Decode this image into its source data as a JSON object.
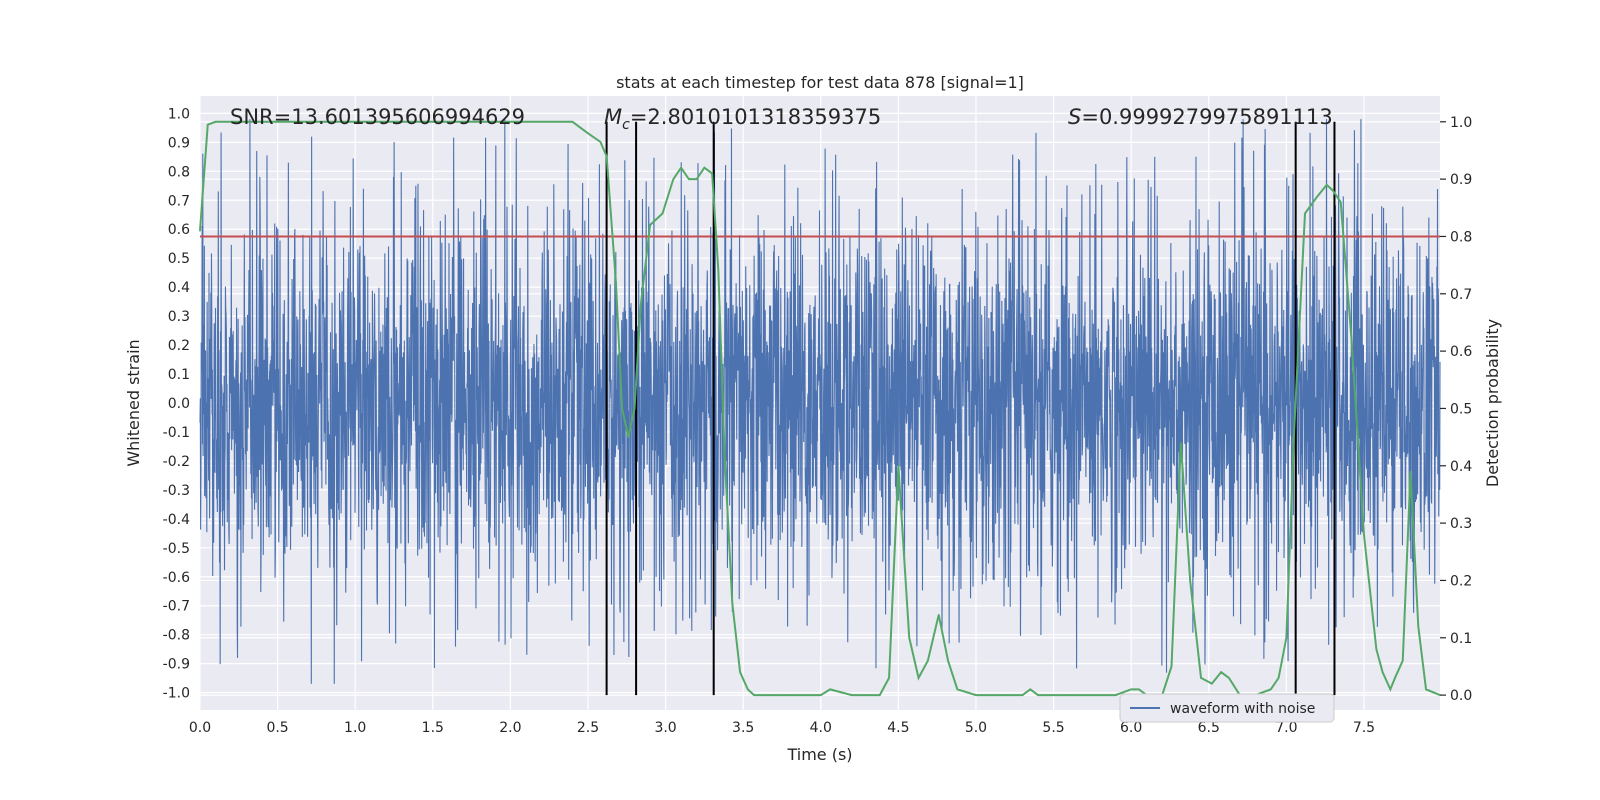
{
  "chart_data": {
    "type": "line",
    "title": "stats at each timestep for test data 878 [signal=1]",
    "xlabel": "Time (s)",
    "ylabel": "Whitened strain",
    "y2label": "Detection probability",
    "xlim": [
      0.0,
      7.99
    ],
    "ylim": [
      -1.06,
      1.06
    ],
    "y2lim": [
      -0.026,
      1.045
    ],
    "x_ticks": [
      "0.0",
      "0.5",
      "1.0",
      "1.5",
      "2.0",
      "2.5",
      "3.0",
      "3.5",
      "4.0",
      "4.5",
      "5.0",
      "5.5",
      "6.0",
      "6.5",
      "7.0",
      "7.5"
    ],
    "y_ticks": [
      "1.0",
      "0.9",
      "0.8",
      "0.7",
      "0.6",
      "0.5",
      "0.4",
      "0.3",
      "0.2",
      "0.1",
      "0.0",
      "-0.1",
      "-0.2",
      "-0.3",
      "-0.4",
      "-0.5",
      "-0.6",
      "-0.7",
      "-0.8",
      "-0.9",
      "-1.0"
    ],
    "y2_ticks": [
      "1.0",
      "0.9",
      "0.8",
      "0.7",
      "0.6",
      "0.5",
      "0.4",
      "0.3",
      "0.2",
      "0.1",
      "0.0"
    ],
    "threshold": {
      "y2": 0.8,
      "color": "#c44e52"
    },
    "event_lines_x": [
      2.62,
      2.81,
      3.31,
      7.06,
      7.31
    ],
    "annotations": {
      "snr": "SNR=13.601395606994629",
      "mc_symbol": "M",
      "mc_sub": "c",
      "mc_value": "=2.8010101318359375",
      "s_symbol": "S",
      "s_value": "=0.9999279975891113"
    },
    "legend": {
      "entries": [
        "waveform with noise"
      ],
      "position": "lower-right"
    },
    "series": [
      {
        "name": "waveform with noise",
        "axis": "left",
        "color": "#4c72b0",
        "description": "whitened noisy strain, roughly -1.0 to 1.0",
        "seed": 878,
        "n_samples": 4000
      },
      {
        "name": "detection probability",
        "axis": "right",
        "color": "#55a868",
        "x": [
          0.0,
          0.05,
          0.1,
          0.2,
          0.5,
          1.0,
          1.5,
          2.0,
          2.2,
          2.4,
          2.5,
          2.58,
          2.62,
          2.68,
          2.72,
          2.76,
          2.8,
          2.84,
          2.9,
          2.98,
          3.05,
          3.1,
          3.15,
          3.2,
          3.25,
          3.3,
          3.34,
          3.38,
          3.43,
          3.48,
          3.53,
          3.57,
          3.6,
          3.7,
          3.8,
          4.0,
          4.06,
          4.2,
          4.3,
          4.38,
          4.44,
          4.5,
          4.57,
          4.63,
          4.69,
          4.76,
          4.82,
          4.88,
          5.0,
          5.2,
          5.3,
          5.35,
          5.4,
          5.6,
          5.9,
          6.0,
          6.05,
          6.1,
          6.2,
          6.26,
          6.32,
          6.38,
          6.45,
          6.52,
          6.58,
          6.63,
          6.7,
          6.8,
          6.9,
          6.95,
          7.0,
          7.05,
          7.12,
          7.2,
          7.26,
          7.3,
          7.35,
          7.42,
          7.5,
          7.58,
          7.62,
          7.67,
          7.7,
          7.75,
          7.8,
          7.85,
          7.9,
          7.99
        ],
        "y": [
          0.81,
          0.995,
          1.0,
          1.0,
          1.0,
          1.0,
          1.0,
          1.0,
          1.0,
          1.0,
          0.98,
          0.965,
          0.94,
          0.72,
          0.5,
          0.45,
          0.5,
          0.68,
          0.82,
          0.84,
          0.9,
          0.92,
          0.9,
          0.9,
          0.92,
          0.91,
          0.74,
          0.42,
          0.16,
          0.04,
          0.01,
          0.0,
          0.0,
          0.0,
          0.0,
          0.0,
          0.01,
          0.0,
          0.0,
          0.0,
          0.03,
          0.4,
          0.1,
          0.03,
          0.06,
          0.14,
          0.06,
          0.01,
          0.0,
          0.0,
          0.0,
          0.01,
          0.0,
          0.0,
          0.0,
          0.01,
          0.01,
          0.0,
          0.0,
          0.05,
          0.44,
          0.2,
          0.03,
          0.02,
          0.04,
          0.03,
          0.0,
          0.0,
          0.01,
          0.03,
          0.1,
          0.46,
          0.84,
          0.87,
          0.89,
          0.88,
          0.86,
          0.62,
          0.28,
          0.08,
          0.04,
          0.01,
          0.03,
          0.06,
          0.39,
          0.12,
          0.01,
          0.0
        ]
      }
    ]
  }
}
